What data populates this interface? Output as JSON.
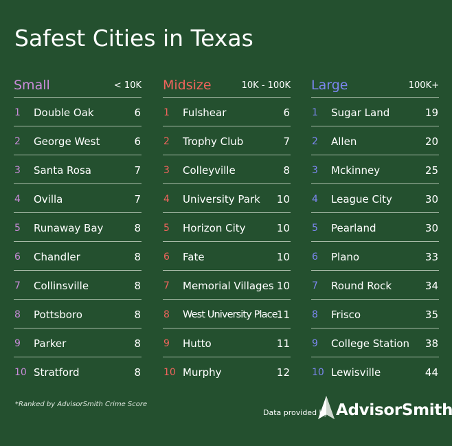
{
  "title": "Safest Cities in Texas",
  "footnote": "*Ranked by AdvisorSmith Crime Score",
  "credit": {
    "prefix": "Data provided by",
    "brand": "AdvisorSmith"
  },
  "colors": {
    "background": "#24502f",
    "small": "#c98bd9",
    "midsize": "#f0645c",
    "large": "#7c86ef",
    "divider": "#a9bca9"
  },
  "chart_data": {
    "type": "table",
    "title": "Safest Cities in Texas",
    "groups": [
      {
        "name": "Small",
        "range": "< 10K",
        "color": "#c98bd9",
        "rows": [
          {
            "rank": "1",
            "city": "Double Oak",
            "score": 6
          },
          {
            "rank": "2",
            "city": "George West",
            "score": 6
          },
          {
            "rank": "3",
            "city": "Santa Rosa",
            "score": 7
          },
          {
            "rank": "4",
            "city": "Ovilla",
            "score": 7
          },
          {
            "rank": "5",
            "city": "Runaway Bay",
            "score": 8
          },
          {
            "rank": "6",
            "city": "Chandler",
            "score": 8
          },
          {
            "rank": "7",
            "city": "Collinsville",
            "score": 8
          },
          {
            "rank": "8",
            "city": "Pottsboro",
            "score": 8
          },
          {
            "rank": "9",
            "city": "Parker",
            "score": 8
          },
          {
            "rank": "10",
            "city": "Stratford",
            "score": 8
          }
        ]
      },
      {
        "name": "Midsize",
        "range": "10K - 100K",
        "color": "#f0645c",
        "rows": [
          {
            "rank": "1",
            "city": "Fulshear",
            "score": 6
          },
          {
            "rank": "2",
            "city": "Trophy Club",
            "score": 7
          },
          {
            "rank": "3",
            "city": "Colleyville",
            "score": 8
          },
          {
            "rank": "4",
            "city": "University Park",
            "score": 10
          },
          {
            "rank": "5",
            "city": "Horizon City",
            "score": 10
          },
          {
            "rank": "6",
            "city": "Fate",
            "score": 10
          },
          {
            "rank": "7",
            "city": "Memorial Villages",
            "score": 10
          },
          {
            "rank": "8",
            "city": "West University Place",
            "score": 11
          },
          {
            "rank": "9",
            "city": "Hutto",
            "score": 11
          },
          {
            "rank": "10",
            "city": "Murphy",
            "score": 12
          }
        ]
      },
      {
        "name": "Large",
        "range": "100K+",
        "color": "#7c86ef",
        "rows": [
          {
            "rank": "1",
            "city": "Sugar Land",
            "score": 19
          },
          {
            "rank": "2",
            "city": "Allen",
            "score": 20
          },
          {
            "rank": "3",
            "city": "Mckinney",
            "score": 25
          },
          {
            "rank": "4",
            "city": "League City",
            "score": 30
          },
          {
            "rank": "5",
            "city": "Pearland",
            "score": 30
          },
          {
            "rank": "6",
            "city": "Plano",
            "score": 33
          },
          {
            "rank": "7",
            "city": "Round Rock",
            "score": 34
          },
          {
            "rank": "8",
            "city": "Frisco",
            "score": 35
          },
          {
            "rank": "9",
            "city": "College Station",
            "score": 38
          },
          {
            "rank": "10",
            "city": "Lewisville",
            "score": 44
          }
        ]
      }
    ]
  }
}
